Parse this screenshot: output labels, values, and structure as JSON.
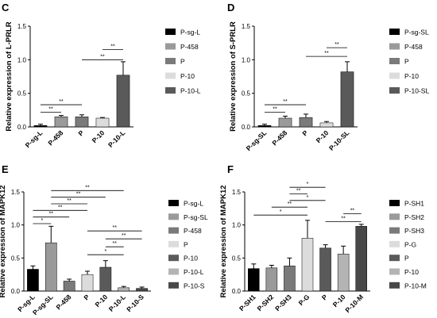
{
  "panels": {
    "C": {
      "label": "C"
    },
    "D": {
      "label": "D"
    },
    "E": {
      "label": "E"
    },
    "F": {
      "label": "F"
    }
  },
  "sig_mark": "**",
  "sig_mark_single": "*",
  "chart_data": [
    {
      "panel": "C",
      "type": "bar",
      "ylabel": "Relative expression of L-PRLR",
      "ylim": [
        0,
        1.5
      ],
      "yticks": [
        "0.0",
        "0.5",
        "1.0",
        "1.5"
      ],
      "categories": [
        "P-sg-L",
        "P-458",
        "P",
        "P-10",
        "P-10-L"
      ],
      "values": [
        0.02,
        0.15,
        0.15,
        0.13,
        0.77
      ],
      "errors": [
        0.02,
        0.02,
        0.03,
        0.01,
        0.2
      ],
      "colors": [
        "#000000",
        "#9a9a9a",
        "#7a7a7a",
        "#dcdcdc",
        "#5a5a5a"
      ],
      "legend": [
        "P-sg-L",
        "P-458",
        "P",
        "P-10",
        "P-10-L"
      ],
      "significance": [
        {
          "from": 0,
          "to": 1,
          "y": 0.22,
          "label": "**"
        },
        {
          "from": 0,
          "to": 2,
          "y": 0.33,
          "label": "**"
        },
        {
          "from": 2,
          "to": 4,
          "y": 1.0,
          "label": "**"
        },
        {
          "from": 3,
          "to": 4,
          "y": 1.15,
          "label": "**"
        }
      ]
    },
    {
      "panel": "D",
      "type": "bar",
      "ylabel": "Relative expression of S-PRLR",
      "ylim": [
        0,
        1.5
      ],
      "yticks": [
        "0.0",
        "0.5",
        "1.0",
        "1.5"
      ],
      "categories": [
        "P-sg-SL",
        "P-458",
        "P",
        "P-10",
        "P-10-SL"
      ],
      "values": [
        0.02,
        0.13,
        0.14,
        0.06,
        0.82
      ],
      "errors": [
        0.02,
        0.03,
        0.05,
        0.02,
        0.15
      ],
      "colors": [
        "#000000",
        "#9a9a9a",
        "#7a7a7a",
        "#dcdcdc",
        "#5a5a5a"
      ],
      "legend": [
        "P-sg-SL",
        "P-458",
        "P",
        "P-10",
        "P-10-SL"
      ],
      "significance": [
        {
          "from": 0,
          "to": 1,
          "y": 0.22,
          "label": "**"
        },
        {
          "from": 0,
          "to": 2,
          "y": 0.33,
          "label": "**"
        },
        {
          "from": 2,
          "to": 4,
          "y": 1.05,
          "label": "**"
        },
        {
          "from": 3,
          "to": 4,
          "y": 1.18,
          "label": "**"
        }
      ]
    },
    {
      "panel": "E",
      "type": "bar",
      "ylabel": "Relative expression of MAPK12",
      "ylim": [
        0,
        1.5
      ],
      "yticks": [
        "0.0",
        "0.5",
        "1.0",
        "1.5"
      ],
      "categories": [
        "P-sg-L",
        "P-sg-SL",
        "P-458",
        "P",
        "P-10",
        "P-10-L",
        "P-10-S"
      ],
      "values": [
        0.33,
        0.73,
        0.15,
        0.25,
        0.36,
        0.05,
        0.04
      ],
      "errors": [
        0.05,
        0.25,
        0.03,
        0.05,
        0.1,
        0.02,
        0.02
      ],
      "colors": [
        "#000000",
        "#9a9a9a",
        "#7a7a7a",
        "#dcdcdc",
        "#5a5a5a",
        "#b4b4b4",
        "#484848"
      ],
      "legend": [
        "P-sg-L",
        "P-sg-SL",
        "P-458",
        "P",
        "P-10",
        "P-10-L",
        "P-10-S"
      ],
      "significance": [
        {
          "from": 0,
          "to": 1,
          "y": 1.02,
          "label": "*"
        },
        {
          "from": 0,
          "to": 2,
          "y": 1.12,
          "label": "**"
        },
        {
          "from": 0,
          "to": 3,
          "y": 1.22,
          "label": "**"
        },
        {
          "from": 1,
          "to": 3,
          "y": 1.32,
          "label": "**"
        },
        {
          "from": 1,
          "to": 4,
          "y": 1.42,
          "label": "**"
        },
        {
          "from": 1,
          "to": 5,
          "y": 1.52,
          "label": "**"
        },
        {
          "from": 3,
          "to": 5,
          "y": 0.55,
          "label": "*"
        },
        {
          "from": 4,
          "to": 5,
          "y": 0.67,
          "label": "**"
        },
        {
          "from": 4,
          "to": 6,
          "y": 0.79,
          "label": "**"
        },
        {
          "from": 3,
          "to": 6,
          "y": 0.91,
          "label": "**"
        }
      ]
    },
    {
      "panel": "F",
      "type": "bar",
      "ylabel": "Relative expression of MAPK12",
      "ylim": [
        0,
        1.5
      ],
      "yticks": [
        "0.0",
        "0.5",
        "1.0",
        "1.5"
      ],
      "categories": [
        "P-SH1",
        "P-SH2",
        "P-SH3",
        "P-G",
        "P",
        "P-10",
        "P-10-M"
      ],
      "values": [
        0.34,
        0.35,
        0.38,
        0.8,
        0.65,
        0.56,
        0.98
      ],
      "errors": [
        0.07,
        0.04,
        0.12,
        0.27,
        0.05,
        0.12,
        0.03
      ],
      "colors": [
        "#000000",
        "#9a9a9a",
        "#7a7a7a",
        "#dcdcdc",
        "#5a5a5a",
        "#b4b4b4",
        "#484848"
      ],
      "legend": [
        "P-SH1",
        "P-SH2",
        "P-SH3",
        "P-G",
        "P",
        "P-10",
        "P-10-M"
      ],
      "significance": [
        {
          "from": 0,
          "to": 3,
          "y": 1.15,
          "label": "*"
        },
        {
          "from": 1,
          "to": 3,
          "y": 1.27,
          "label": "**"
        },
        {
          "from": 2,
          "to": 4,
          "y": 1.37,
          "label": "*"
        },
        {
          "from": 2,
          "to": 3,
          "y": 1.47,
          "label": "**"
        },
        {
          "from": 2,
          "to": 4,
          "y": 1.57,
          "label": "*"
        },
        {
          "from": 4,
          "to": 6,
          "y": 1.05,
          "label": "**"
        },
        {
          "from": 5,
          "to": 6,
          "y": 1.17,
          "label": "**"
        }
      ]
    }
  ]
}
